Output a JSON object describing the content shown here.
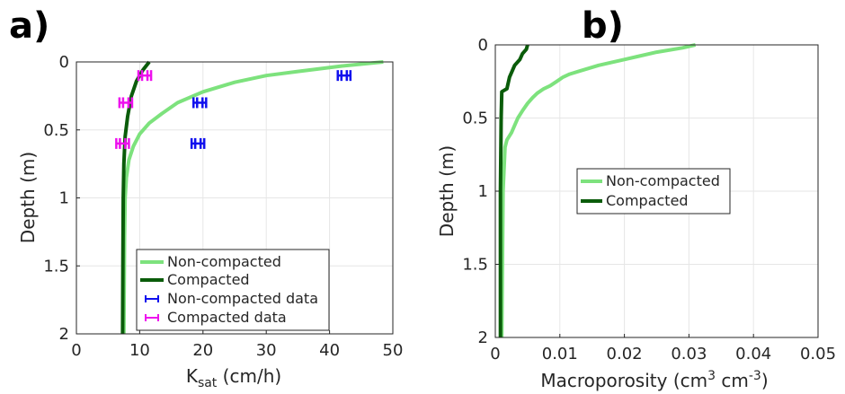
{
  "chart_data": [
    {
      "panel_label": "a)",
      "type": "line",
      "xlabel": "K",
      "xlabel_sub": "sat",
      "xlabel_unit": "(cm/h)",
      "ylabel": "Depth (m)",
      "xlim": [
        0,
        50
      ],
      "ylim": [
        0,
        2
      ],
      "y_reversed": true,
      "grid": true,
      "xticks": [
        0,
        10,
        20,
        30,
        40,
        50
      ],
      "xtick_labels": [
        "0",
        "10",
        "20",
        "30",
        "40",
        "50"
      ],
      "yticks": [
        0,
        0.5,
        1,
        1.5,
        2
      ],
      "ytick_labels": [
        "0",
        "0.5",
        "1",
        "1.5",
        "2"
      ],
      "legend_position": "bottom-right",
      "series": [
        {
          "name": "Non-compacted",
          "kind": "line",
          "color": "#7de27d",
          "points": [
            [
              48.5,
              0
            ],
            [
              42,
              0.03
            ],
            [
              35,
              0.07
            ],
            [
              30,
              0.1
            ],
            [
              25,
              0.15
            ],
            [
              20,
              0.22
            ],
            [
              16,
              0.3
            ],
            [
              13.5,
              0.38
            ],
            [
              11.5,
              0.45
            ],
            [
              10,
              0.53
            ],
            [
              9,
              0.62
            ],
            [
              8.3,
              0.72
            ],
            [
              7.9,
              0.85
            ],
            [
              7.7,
              1.0
            ],
            [
              7.6,
              1.3
            ],
            [
              7.55,
              1.6
            ],
            [
              7.5,
              2.0
            ]
          ]
        },
        {
          "name": "Compacted",
          "kind": "line",
          "color": "#0a5c0a",
          "points": [
            [
              11.5,
              0
            ],
            [
              10.5,
              0.06
            ],
            [
              9.5,
              0.14
            ],
            [
              8.7,
              0.25
            ],
            [
              8.1,
              0.4
            ],
            [
              7.7,
              0.55
            ],
            [
              7.5,
              0.75
            ],
            [
              7.4,
              1.0
            ],
            [
              7.35,
              1.5
            ],
            [
              7.3,
              2.0
            ]
          ]
        },
        {
          "name": "Non-compacted data",
          "kind": "errorbar",
          "color": "#1010ee",
          "points": [
            {
              "x": 42.3,
              "y": 0.1,
              "err": 1.0
            },
            {
              "x": 19.5,
              "y": 0.3,
              "err": 1.0
            },
            {
              "x": 19.2,
              "y": 0.6,
              "err": 1.0
            }
          ]
        },
        {
          "name": "Compacted data",
          "kind": "errorbar",
          "color": "#ee10ee",
          "points": [
            {
              "x": 10.8,
              "y": 0.1,
              "err": 1.0
            },
            {
              "x": 7.8,
              "y": 0.3,
              "err": 1.0
            },
            {
              "x": 7.3,
              "y": 0.6,
              "err": 1.0
            }
          ]
        }
      ]
    },
    {
      "panel_label": "b)",
      "type": "line",
      "xlabel": "Macroporosity (cm",
      "xlabel_sup1": "3",
      "xlabel_mid": " cm",
      "xlabel_sup2": "-3",
      "xlabel_end": ")",
      "ylabel": "Depth (m)",
      "xlim": [
        0,
        0.05
      ],
      "ylim": [
        0,
        2
      ],
      "y_reversed": true,
      "grid": true,
      "xticks": [
        0,
        0.01,
        0.02,
        0.03,
        0.04,
        0.05
      ],
      "xtick_labels": [
        "0",
        "0.01",
        "0.02",
        "0.03",
        "0.04",
        "0.05"
      ],
      "yticks": [
        0,
        0.5,
        1,
        1.5,
        2
      ],
      "ytick_labels": [
        "0",
        "0.5",
        "1",
        "1.5",
        "2"
      ],
      "legend_position": "center",
      "series": [
        {
          "name": "Non-compacted",
          "kind": "line",
          "color": "#7de27d",
          "points": [
            [
              0.031,
              0
            ],
            [
              0.029,
              0.02
            ],
            [
              0.025,
              0.05
            ],
            [
              0.022,
              0.08
            ],
            [
              0.02,
              0.1
            ],
            [
              0.018,
              0.12
            ],
            [
              0.016,
              0.14
            ],
            [
              0.0145,
              0.16
            ],
            [
              0.013,
              0.18
            ],
            [
              0.0115,
              0.2
            ],
            [
              0.0105,
              0.22
            ],
            [
              0.0095,
              0.25
            ],
            [
              0.0085,
              0.28
            ],
            [
              0.0075,
              0.3
            ],
            [
              0.0065,
              0.33
            ],
            [
              0.0058,
              0.36
            ],
            [
              0.005,
              0.4
            ],
            [
              0.0042,
              0.45
            ],
            [
              0.0035,
              0.5
            ],
            [
              0.003,
              0.55
            ],
            [
              0.0025,
              0.6
            ],
            [
              0.0018,
              0.65
            ],
            [
              0.0015,
              0.7
            ],
            [
              0.0012,
              1.0
            ],
            [
              0.0011,
              1.5
            ],
            [
              0.001,
              2.0
            ]
          ]
        },
        {
          "name": "Compacted",
          "kind": "line",
          "color": "#0a5c0a",
          "points": [
            [
              0.005,
              0
            ],
            [
              0.0048,
              0.03
            ],
            [
              0.0042,
              0.06
            ],
            [
              0.0038,
              0.1
            ],
            [
              0.003,
              0.14
            ],
            [
              0.0026,
              0.18
            ],
            [
              0.0022,
              0.22
            ],
            [
              0.0018,
              0.3
            ],
            [
              0.001,
              0.32
            ],
            [
              0.0009,
              0.5
            ],
            [
              0.0008,
              1.0
            ],
            [
              0.0008,
              1.5
            ],
            [
              0.0008,
              2.0
            ]
          ]
        }
      ]
    }
  ]
}
